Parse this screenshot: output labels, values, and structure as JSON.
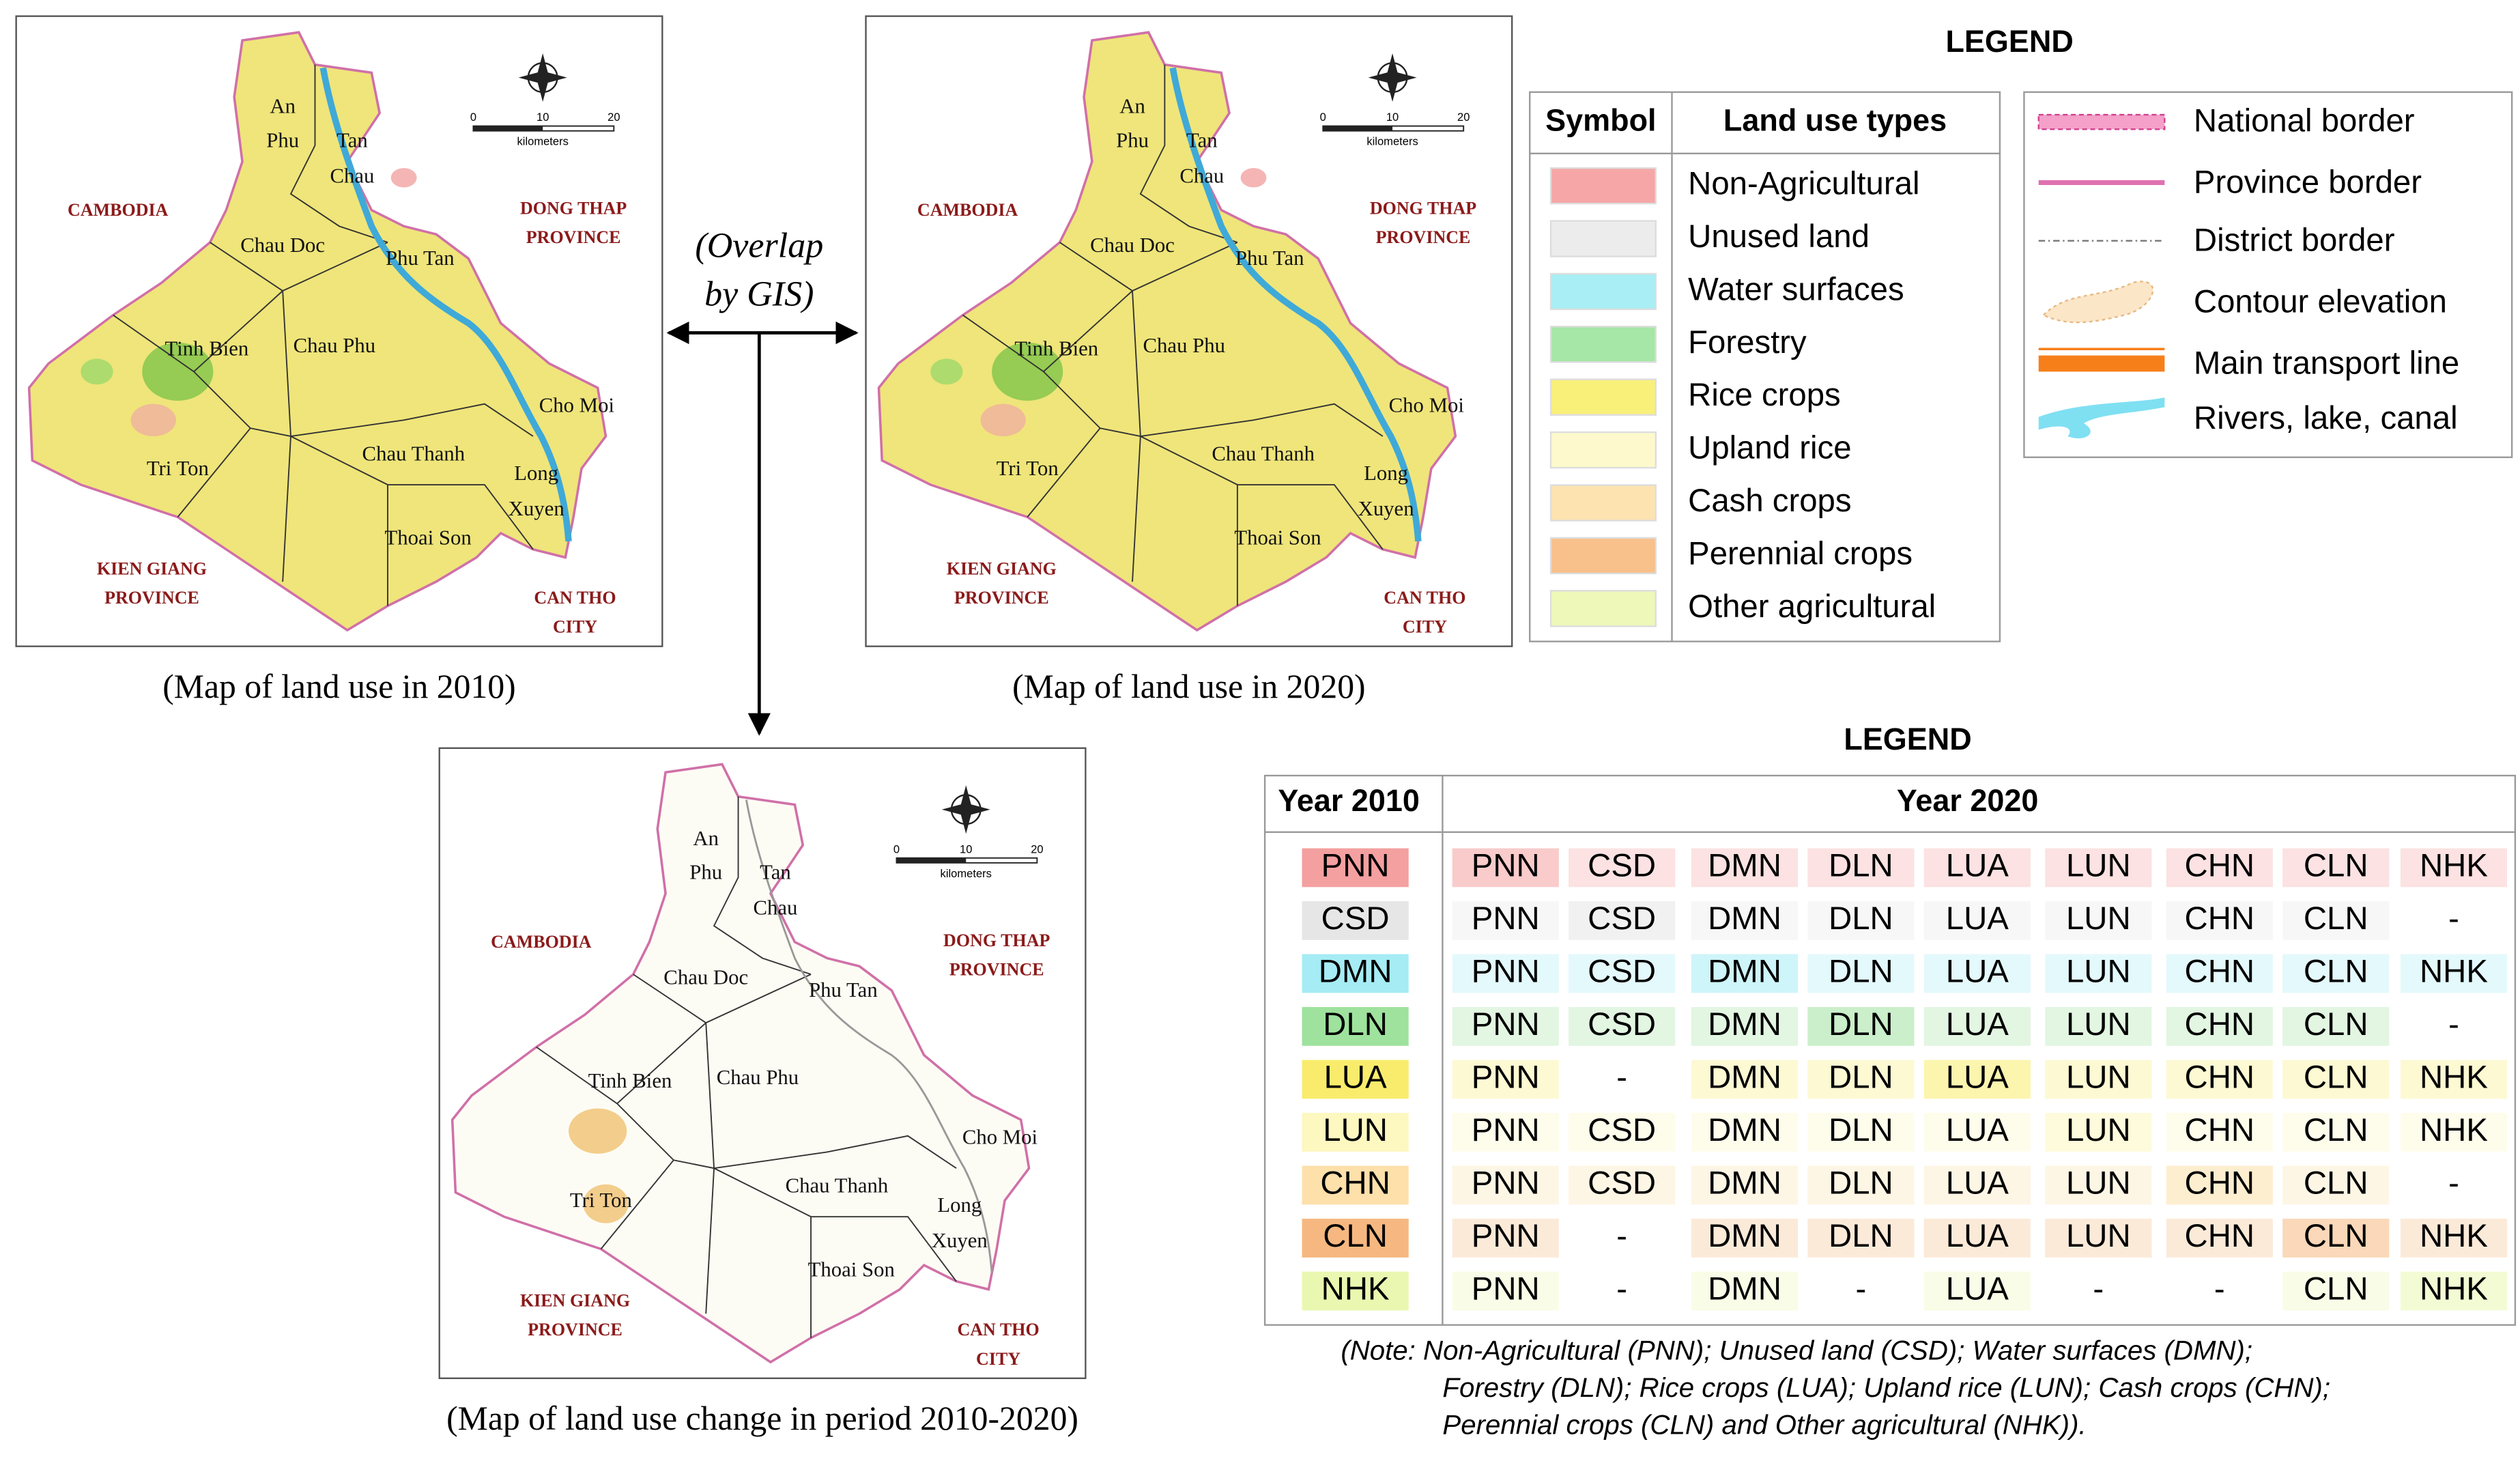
{
  "maps": [
    {
      "color": "#efe57a",
      "caption": "(Map of land use in 2010)",
      "places": [
        [
          "An",
          "Phu"
        ],
        [
          "Tan",
          "Chau"
        ],
        [
          "Chau Doc"
        ],
        [
          "Phu Tan"
        ],
        [
          "Tinh Bien"
        ],
        [
          "Chau Phu"
        ],
        [
          "Cho Moi"
        ],
        [
          "Tri Ton"
        ],
        [
          "Chau Thanh"
        ],
        [
          "Long",
          "Xuyen"
        ],
        [
          "Thoai Son"
        ]
      ],
      "regions": [
        [
          "CAMBODIA"
        ],
        [
          "DONG THAP",
          "PROVINCE"
        ],
        [
          "KIEN GIANG",
          "PROVINCE"
        ],
        [
          "CAN THO",
          "CITY"
        ]
      ],
      "scale": [
        "0",
        "10",
        "20",
        "kilometers"
      ]
    },
    {
      "color": "#efe57a",
      "caption": "(Map of land use in 2020)",
      "places": [
        [
          "An",
          "Phu"
        ],
        [
          "Tan",
          "Chau"
        ],
        [
          "Chau Doc"
        ],
        [
          "Phu Tan"
        ],
        [
          "Tinh Bien"
        ],
        [
          "Chau Phu"
        ],
        [
          "Cho Moi"
        ],
        [
          "Tri Ton"
        ],
        [
          "Chau Thanh"
        ],
        [
          "Long",
          "Xuyen"
        ],
        [
          "Thoai Son"
        ]
      ],
      "regions": [
        [
          "CAMBODIA"
        ],
        [
          "DONG THAP",
          "PROVINCE"
        ],
        [
          "KIEN GIANG",
          "PROVINCE"
        ],
        [
          "CAN THO",
          "CITY"
        ]
      ],
      "scale": [
        "0",
        "10",
        "20",
        "kilometers"
      ]
    },
    {
      "color": "#fdfcf4",
      "caption": "(Map of land use change  in period 2010-2020)",
      "places": [
        [
          "An",
          "Phu"
        ],
        [
          "Tan",
          "Chau"
        ],
        [
          "Chau Doc"
        ],
        [
          "Phu Tan"
        ],
        [
          "Tinh Bien"
        ],
        [
          "Chau Phu"
        ],
        [
          "Cho Moi"
        ],
        [
          "Tri Ton"
        ],
        [
          "Chau Thanh"
        ],
        [
          "Long",
          "Xuyen"
        ],
        [
          "Thoai Son"
        ]
      ],
      "regions": [
        [
          "CAMBODIA"
        ],
        [
          "DONG THAP",
          "PROVINCE"
        ],
        [
          "KIEN GIANG",
          "PROVINCE"
        ],
        [
          "CAN THO",
          "CITY"
        ]
      ],
      "scale": [
        "0",
        "10",
        "20",
        "kilometers"
      ]
    }
  ],
  "overlap": [
    "(Overlap",
    "by GIS)"
  ],
  "legend1": {
    "title": "LEGEND",
    "headers": [
      "Symbol",
      "Land use types"
    ],
    "items": [
      {
        "label": "Non-Agricultural",
        "color": "#f6a6a6"
      },
      {
        "label": "Unused land",
        "color": "#ececec"
      },
      {
        "label": "Water surfaces",
        "color": "#a8eef4"
      },
      {
        "label": "Forestry",
        "color": "#a6e6a6"
      },
      {
        "label": "Rice crops",
        "color": "#f9f07a"
      },
      {
        "label": "Upland rice",
        "color": "#fdf9cc"
      },
      {
        "label": "Cash crops",
        "color": "#fde3b0"
      },
      {
        "label": "Perennial crops",
        "color": "#f8c08a"
      },
      {
        "label": "Other agricultural",
        "color": "#eef8b8"
      }
    ]
  },
  "legend2": {
    "items": [
      "National border",
      "Province border",
      "District border",
      "Contour elevation",
      "Main transport line",
      "Rivers, lake, canal"
    ]
  },
  "legend3": {
    "title": "LEGEND",
    "headers": [
      "Year 2010",
      "Year 2020"
    ],
    "rows": [
      {
        "code": "PNN",
        "color": "#f4a0a0",
        "cells": [
          "PNN",
          "CSD",
          "DMN",
          "DLN",
          "LUA",
          "LUN",
          "CHN",
          "CLN",
          "NHK"
        ]
      },
      {
        "code": "CSD",
        "color": "#e6e6e6",
        "cells": [
          "PNN",
          "CSD",
          "DMN",
          "DLN",
          "LUA",
          "LUN",
          "CHN",
          "CLN",
          "-"
        ]
      },
      {
        "code": "DMN",
        "color": "#a6ecf4",
        "cells": [
          "PNN",
          "CSD",
          "DMN",
          "DLN",
          "LUA",
          "LUN",
          "CHN",
          "CLN",
          "NHK"
        ]
      },
      {
        "code": "DLN",
        "color": "#9ee29e",
        "cells": [
          "PNN",
          "CSD",
          "DMN",
          "DLN",
          "LUA",
          "LUN",
          "CHN",
          "CLN",
          "-"
        ]
      },
      {
        "code": "LUA",
        "color": "#f9ec6c",
        "cells": [
          "PNN",
          "-",
          "DMN",
          "DLN",
          "LUA",
          "LUN",
          "CHN",
          "CLN",
          "NHK"
        ]
      },
      {
        "code": "LUN",
        "color": "#fdf7c0",
        "cells": [
          "PNN",
          "CSD",
          "DMN",
          "DLN",
          "LUA",
          "LUN",
          "CHN",
          "CLN",
          "NHK"
        ]
      },
      {
        "code": "CHN",
        "color": "#fde0aa",
        "cells": [
          "PNN",
          "CSD",
          "DMN",
          "DLN",
          "LUA",
          "LUN",
          "CHN",
          "CLN",
          "-"
        ]
      },
      {
        "code": "CLN",
        "color": "#f6b880",
        "cells": [
          "PNN",
          "-",
          "DMN",
          "DLN",
          "LUA",
          "LUN",
          "CHN",
          "CLN",
          "NHK"
        ]
      },
      {
        "code": "NHK",
        "color": "#eaf7b0",
        "cells": [
          "PNN",
          "-",
          "DMN",
          "-",
          "LUA",
          "-",
          "-",
          "CLN",
          "NHK"
        ]
      }
    ]
  },
  "note": [
    "(Note: Non-Agricultural (PNN); Unused land (CSD); Water surfaces (DMN);",
    "Forestry (DLN); Rice crops (LUA); Upland rice (LUN); Cash crops (CHN);",
    "Perennial crops (CLN) and Other agricultural (NHK))."
  ]
}
